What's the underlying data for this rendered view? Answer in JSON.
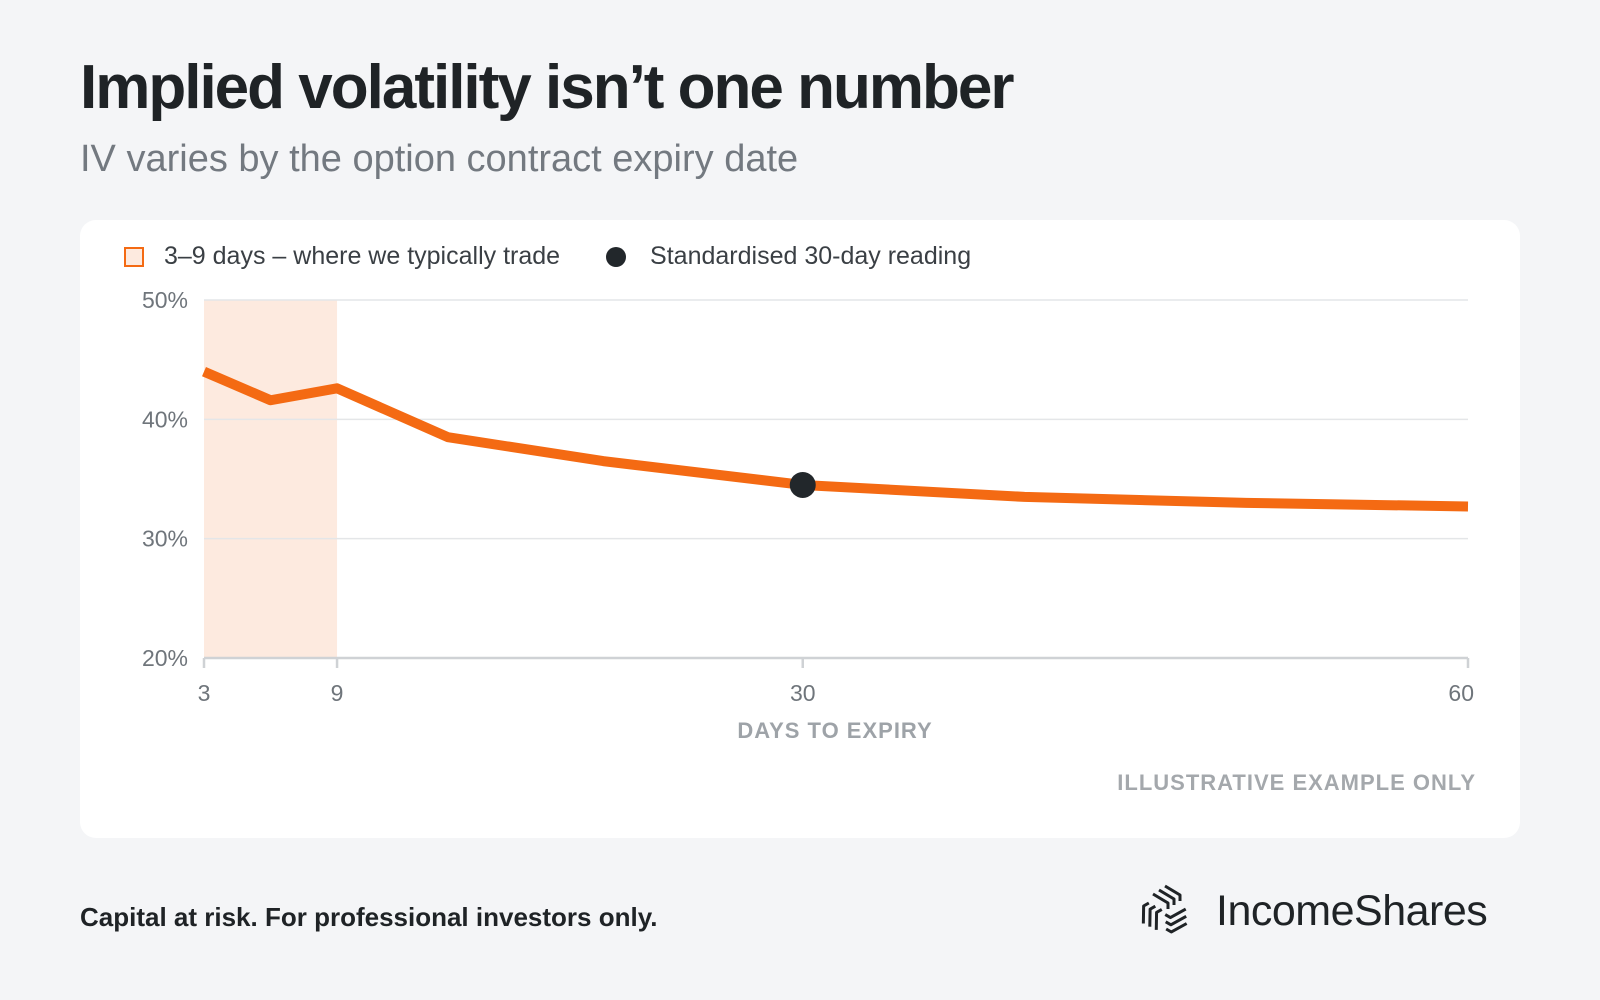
{
  "header": {
    "title": "Implied volatility isn’t one number",
    "subtitle": "IV varies by the option contract expiry date"
  },
  "legend": {
    "band_label": "3–9 days – where we typically trade",
    "point_label": "Standardised 30-day reading"
  },
  "colors": {
    "line": "#f46a13",
    "band": "#fdeadf",
    "point": "#22272b",
    "grid": "#e4e6e8"
  },
  "chart_data": {
    "type": "line",
    "title": "",
    "xlabel": "DAYS TO EXPIRY",
    "ylabel": "",
    "xlim": [
      3,
      60
    ],
    "ylim": [
      20,
      50
    ],
    "x_ticks": [
      3,
      9,
      30,
      60
    ],
    "x_tick_labels": [
      "3",
      "9",
      "30",
      "60"
    ],
    "y_ticks": [
      20,
      30,
      40,
      50
    ],
    "y_tick_labels": [
      "20%",
      "30%",
      "40%",
      "50%"
    ],
    "grid": true,
    "series": [
      {
        "x": [
          3,
          6,
          9,
          14,
          21,
          30,
          40,
          50,
          60
        ],
        "y": [
          44.0,
          41.6,
          42.6,
          38.5,
          36.5,
          34.5,
          33.5,
          33.0,
          32.7
        ]
      }
    ],
    "shaded_band": {
      "x_start": 3,
      "x_end": 9,
      "label": "3–9 days – where we typically trade"
    },
    "highlight_point": {
      "x": 30,
      "y": 34.5,
      "label": "Standardised 30-day reading"
    },
    "annotation": "ILLUSTRATIVE EXAMPLE ONLY"
  },
  "footer": {
    "note": "Capital at risk. For professional investors only.",
    "brand_name": "IncomeShares",
    "logo_icon": "interlocking-arrows-logo-icon"
  }
}
